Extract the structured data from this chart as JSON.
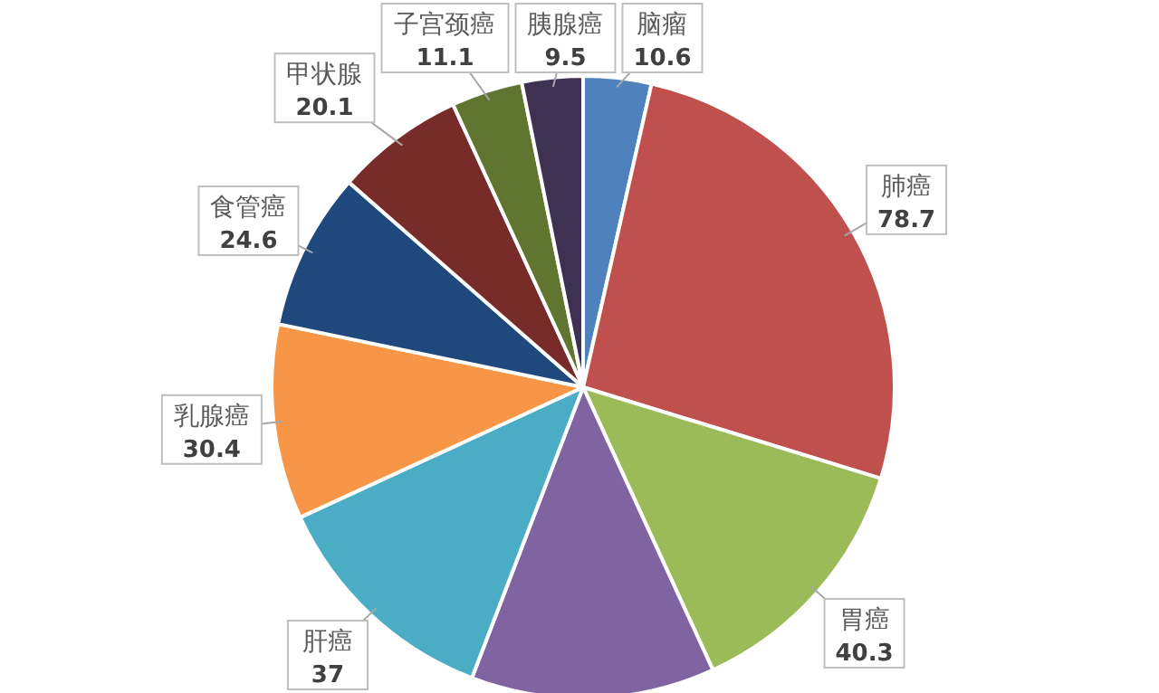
{
  "chart_data": {
    "type": "pie",
    "categories": [
      "脑瘤",
      "肺癌",
      "胃癌",
      null,
      "肝癌",
      "乳腺癌",
      "食管癌",
      "甲状腺",
      "子宫颈癌",
      "胰腺癌"
    ],
    "values": [
      10.6,
      78.7,
      40.3,
      38,
      37,
      30.4,
      24.6,
      20.1,
      11.1,
      9.5
    ],
    "value_labels": [
      "10.6",
      "78.7",
      "40.3",
      null,
      "37",
      "30.4",
      "24.6",
      "20.1",
      "11.1",
      "9.5"
    ],
    "colors": [
      "#4f81bd",
      "#c0504d",
      "#9bbb59",
      "#8064a2",
      "#4bacc6",
      "#f79646",
      "#1f497d",
      "#772c2a",
      "#5f7530",
      "#3f3151"
    ]
  }
}
